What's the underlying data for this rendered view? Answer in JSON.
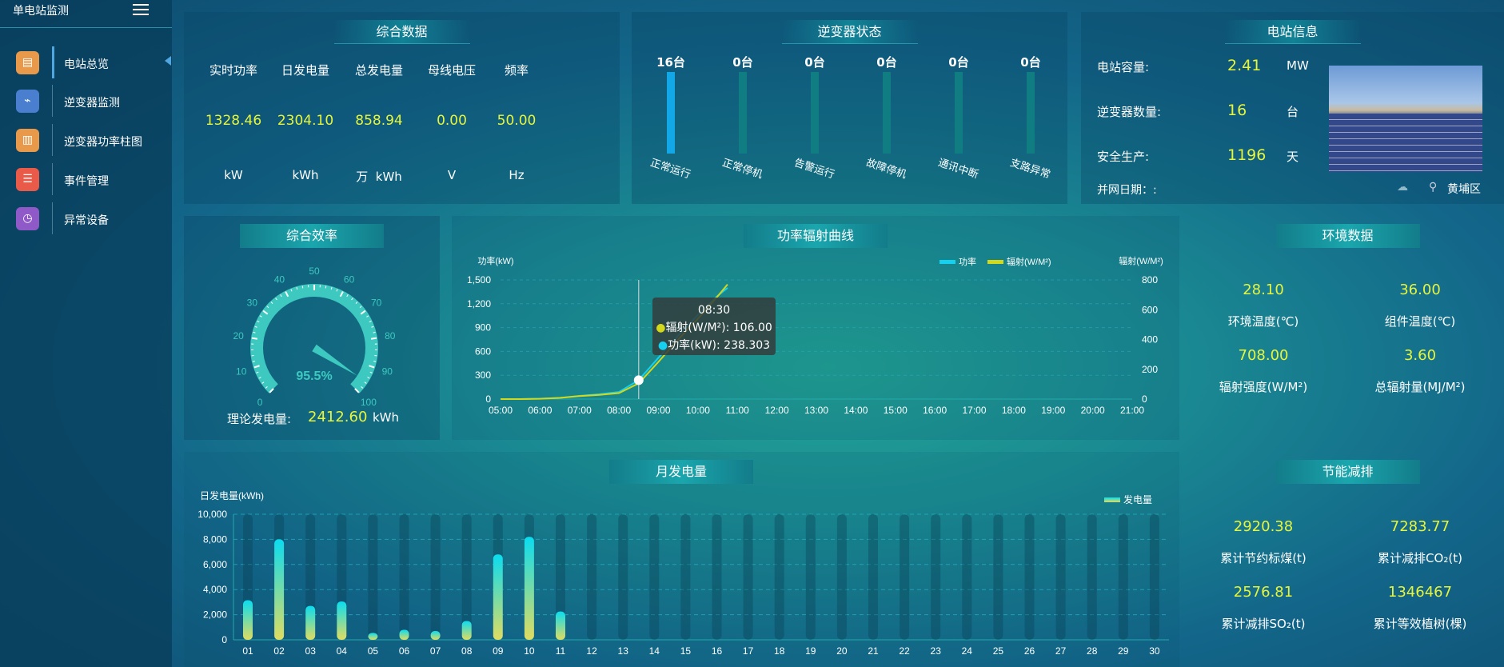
{
  "sidebar": {
    "title": "单电站监测",
    "items": [
      {
        "label": "电站总览",
        "icon": "document-icon",
        "color": "#e89a4a",
        "glyph": "▤"
      },
      {
        "label": "逆变器监测",
        "icon": "monitor-icon",
        "color": "#4a7fd0",
        "glyph": "⌁"
      },
      {
        "label": "逆变器功率柱图",
        "icon": "bar-chart-icon",
        "color": "#e89a4a",
        "glyph": "▥"
      },
      {
        "label": "事件管理",
        "icon": "notepad-icon",
        "color": "#ea5a48",
        "glyph": "☰"
      },
      {
        "label": "异常设备",
        "icon": "clock-list-icon",
        "color": "#8f5ac8",
        "glyph": "◷"
      }
    ]
  },
  "summary": {
    "title": "综合数据",
    "items": [
      {
        "label": "实时功率",
        "value": "1328.46",
        "unit": "kW"
      },
      {
        "label": "日发电量",
        "value": "2304.10",
        "unit": "kWh"
      },
      {
        "label": "总发电量",
        "value": "858.94",
        "unit": "万  kWh"
      },
      {
        "label": "母线电压",
        "value": "0.00",
        "unit": "V"
      },
      {
        "label": "频率",
        "value": "50.00",
        "unit": "Hz"
      }
    ]
  },
  "inverter": {
    "title": "逆变器状态",
    "items": [
      {
        "count": "16台",
        "label": "正常运行",
        "active": true
      },
      {
        "count": "0台",
        "label": "正常停机",
        "active": false
      },
      {
        "count": "0台",
        "label": "告警运行",
        "active": false
      },
      {
        "count": "0台",
        "label": "故障停机",
        "active": false
      },
      {
        "count": "0台",
        "label": "通讯中断",
        "active": false
      },
      {
        "count": "0台",
        "label": "支路异常",
        "active": false
      }
    ]
  },
  "station": {
    "title": "电站信息",
    "rows": [
      {
        "label": "电站容量:",
        "value": "2.41",
        "unit": "MW"
      },
      {
        "label": "逆变器数量:",
        "value": "16",
        "unit": "台"
      },
      {
        "label": "安全生产:",
        "value": "1196",
        "unit": "天"
      }
    ],
    "grid_date_label": "并网日期：:",
    "location": "黄埔区"
  },
  "efficiency": {
    "title": "综合效率",
    "value": 95.5,
    "value_label": "95.5%",
    "ticks": [
      "0",
      "10",
      "20",
      "30",
      "40",
      "50",
      "60",
      "70",
      "80",
      "90",
      "100"
    ],
    "theory_label": "理论发电量:",
    "theory_value": "2412.60",
    "theory_unit": "kWh"
  },
  "env": {
    "title": "环境数据",
    "items": [
      {
        "value": "28.10",
        "label": "环境温度(℃)"
      },
      {
        "value": "36.00",
        "label": "组件温度(℃)"
      },
      {
        "value": "708.00",
        "label": "辐射强度(W/M²)"
      },
      {
        "value": "3.60",
        "label": "总辐射量(MJ/M²)"
      }
    ]
  },
  "saving": {
    "title": "节能减排",
    "items": [
      {
        "value": "2920.38",
        "label": "累计节约标煤(t)"
      },
      {
        "value": "7283.77",
        "label": "累计减排CO₂(t)"
      },
      {
        "value": "2576.81",
        "label": "累计减排SO₂(t)"
      },
      {
        "value": "1346467",
        "label": "累计等效植树(棵)"
      }
    ]
  },
  "chart_data": [
    {
      "type": "line",
      "title": "功率辐射曲线",
      "ylabel": "功率(kW)",
      "y2label": "辐射(W/M²)",
      "ylim": [
        0,
        1500
      ],
      "y2lim": [
        0,
        800
      ],
      "yticks": [
        "0",
        "300",
        "600",
        "900",
        "1,200",
        "1,500"
      ],
      "y2ticks": [
        "0",
        "200",
        "400",
        "600",
        "800"
      ],
      "xticks": [
        "05:00",
        "06:00",
        "07:00",
        "08:00",
        "09:00",
        "10:00",
        "11:00",
        "12:00",
        "13:00",
        "14:00",
        "15:00",
        "16:00",
        "17:00",
        "18:00",
        "19:00",
        "20:00",
        "21:00"
      ],
      "legend": "top-right",
      "grid": true,
      "x": [
        "05:00",
        "05:30",
        "06:00",
        "06:30",
        "07:00",
        "07:30",
        "08:00",
        "08:30",
        "09:00",
        "09:30",
        "10:00",
        "10:30",
        "10:45"
      ],
      "series": [
        {
          "name": "功率",
          "color": "#16d0f0",
          "axis": "left",
          "values": [
            0,
            0,
            5,
            15,
            40,
            60,
            90,
            238.303,
            520,
            800,
            1060,
            1300,
            1400
          ]
        },
        {
          "name": "辐射(W/M²)",
          "color": "#d4d81a",
          "axis": "right",
          "values": [
            0,
            0,
            2,
            8,
            20,
            28,
            40,
            106,
            250,
            400,
            540,
            690,
            770
          ]
        }
      ],
      "tooltip": {
        "time": "08:30",
        "lines": [
          "辐射(W/M²): 106.00",
          "功率(kW): 238.303"
        ]
      }
    },
    {
      "type": "bar",
      "title": "月发电量",
      "ylabel": "日发电量(kWh)",
      "ylim": [
        0,
        10000
      ],
      "yticks": [
        "0",
        "2,000",
        "4,000",
        "6,000",
        "8,000",
        "10,000"
      ],
      "legend": "top-right",
      "series_name": "发电量",
      "grid": true,
      "categories": [
        "01",
        "02",
        "03",
        "04",
        "05",
        "06",
        "07",
        "08",
        "09",
        "10",
        "11",
        "12",
        "13",
        "14",
        "15",
        "16",
        "17",
        "18",
        "19",
        "20",
        "21",
        "22",
        "23",
        "24",
        "25",
        "26",
        "27",
        "28",
        "29",
        "30"
      ],
      "values": [
        3150,
        8000,
        2700,
        3050,
        550,
        800,
        700,
        1500,
        6800,
        8200,
        2250,
        null,
        null,
        null,
        null,
        null,
        null,
        null,
        null,
        null,
        null,
        null,
        null,
        null,
        null,
        null,
        null,
        null,
        null,
        null
      ]
    }
  ]
}
